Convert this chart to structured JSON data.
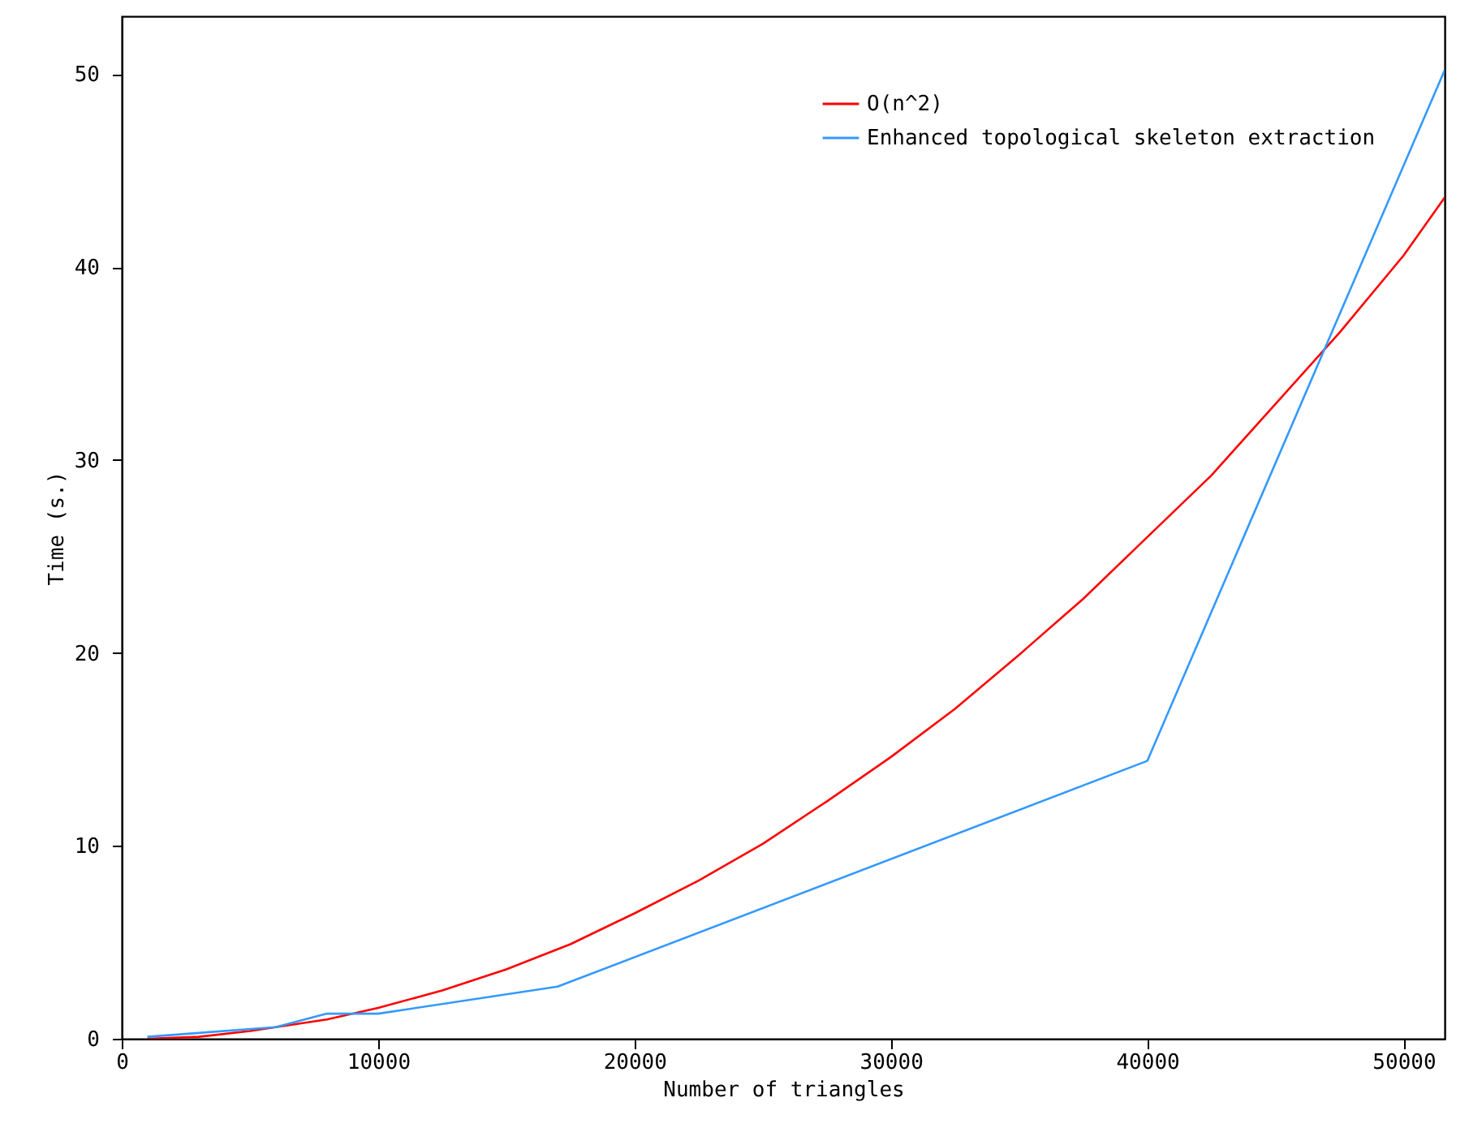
{
  "chart_data": {
    "type": "line",
    "xlabel": "Number of triangles",
    "ylabel": "Time (s.)",
    "xlim": [
      0,
      51600
    ],
    "ylim": [
      0,
      53
    ],
    "xticks": [
      0,
      10000,
      20000,
      30000,
      40000,
      50000
    ],
    "yticks": [
      0,
      10,
      20,
      30,
      40,
      50
    ],
    "grid": false,
    "legend": "top right",
    "marker": "none",
    "line_style": "solid",
    "series": [
      {
        "name": "O(n^2)",
        "color": "#ff0000",
        "x": [
          1000,
          3000,
          5000,
          8000,
          10000,
          12500,
          15000,
          17500,
          20000,
          22500,
          25000,
          27500,
          30000,
          32500,
          35000,
          37500,
          40000,
          42500,
          45000,
          47500,
          50000,
          51600
        ],
        "values": [
          0.0,
          0.1,
          0.4,
          1.0,
          1.6,
          2.5,
          3.6,
          4.9,
          6.5,
          8.2,
          10.1,
          12.3,
          14.6,
          17.1,
          19.9,
          22.8,
          26.0,
          29.2,
          32.9,
          36.6,
          40.6,
          43.6
        ]
      },
      {
        "name": "Enhanced topological skeleton extraction",
        "color": "#3399ff",
        "x": [
          1000,
          3000,
          6000,
          8000,
          10000,
          17000,
          40000,
          51600
        ],
        "values": [
          0.1,
          0.3,
          0.6,
          1.3,
          1.3,
          2.7,
          14.4,
          50.2
        ]
      }
    ]
  }
}
